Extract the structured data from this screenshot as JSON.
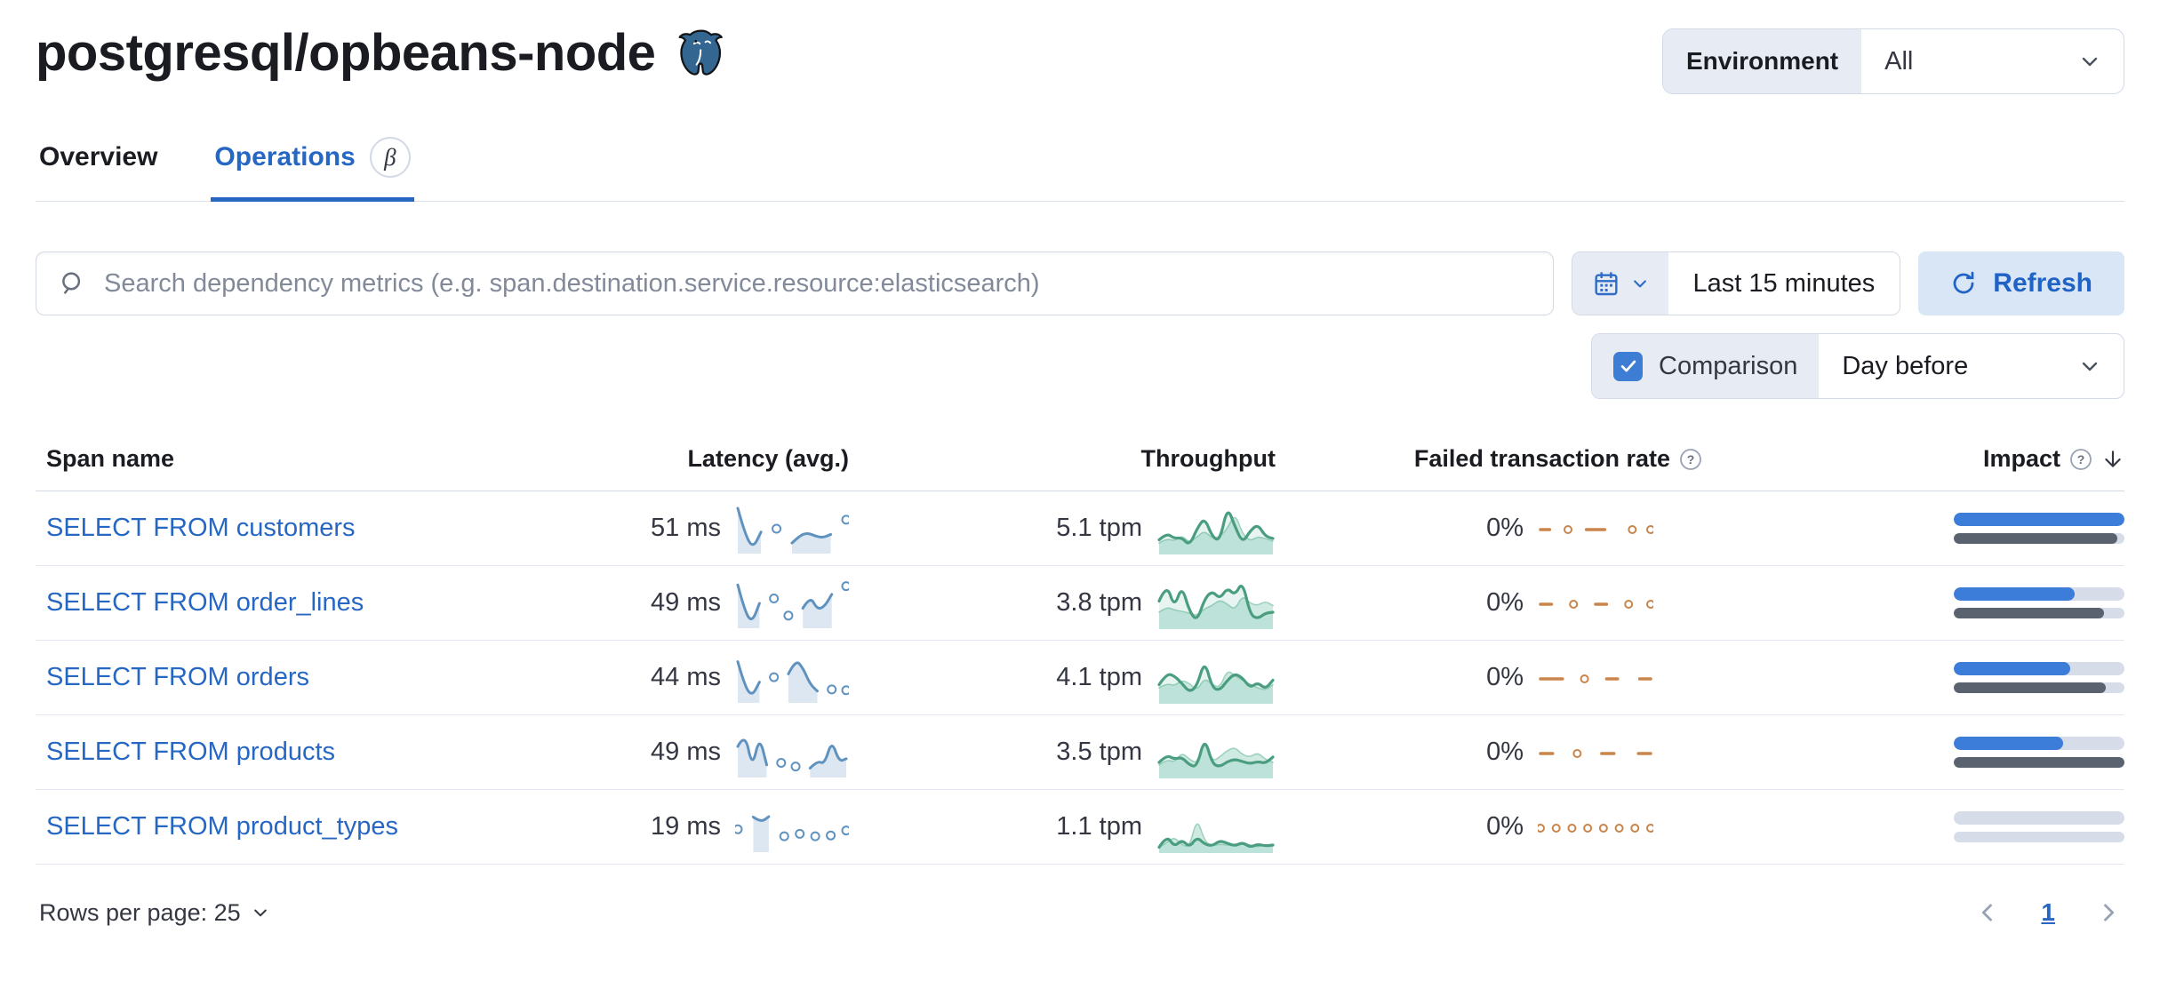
{
  "page": {
    "title": "postgresql/opbeans-node"
  },
  "environment": {
    "label": "Environment",
    "value": "All"
  },
  "tabs": [
    {
      "label": "Overview",
      "active": false
    },
    {
      "label": "Operations",
      "active": true,
      "badge": "β"
    }
  ],
  "search": {
    "placeholder": "Search dependency metrics (e.g. span.destination.service.resource:elasticsearch)"
  },
  "time_picker": {
    "value": "Last 15 minutes"
  },
  "refresh": {
    "label": "Refresh"
  },
  "comparison": {
    "label": "Comparison",
    "value": "Day before",
    "checked": true
  },
  "table": {
    "headers": {
      "span_name": "Span name",
      "latency": "Latency (avg.)",
      "throughput": "Throughput",
      "failed_rate": "Failed transaction rate",
      "impact": "Impact"
    },
    "sort": {
      "column": "impact",
      "direction": "desc"
    },
    "rows": [
      {
        "span_name": "SELECT FROM customers",
        "latency": "51 ms",
        "throughput": "5.1 tpm",
        "failed_rate": "0%",
        "impact": {
          "current": 100,
          "previous": 96
        },
        "sparks": {
          "latency": [
            1,
            0.32,
            0.03,
            0.42,
            null,
            0.5,
            null,
            0.15,
            0.33,
            0.4,
            0.32,
            0.28,
            0.36,
            null,
            0.72
          ],
          "throughput_current": [
            0.25,
            0.4,
            0.28,
            0.3,
            0.12,
            0.5,
            0.75,
            0.32,
            0.22,
            1.0,
            0.55,
            0.18,
            0.45,
            0.6,
            0.33,
            0.28
          ],
          "throughput_previous": [
            0.18,
            0.28,
            0.22,
            0.35,
            0.18,
            0.32,
            0.45,
            0.28,
            0.32,
            0.5,
            0.85,
            0.38,
            0.22,
            0.32,
            0.28,
            0.22
          ],
          "failed": [
            0,
            0,
            null,
            0,
            null,
            0,
            0,
            0,
            null,
            null,
            0,
            null,
            0
          ]
        }
      },
      {
        "span_name": "SELECT FROM order_lines",
        "latency": "49 ms",
        "throughput": "3.8 tpm",
        "failed_rate": "0%",
        "impact": {
          "current": 71,
          "previous": 88
        },
        "sparks": {
          "latency": [
            0.95,
            0.28,
            0.04,
            0.5,
            null,
            0.62,
            null,
            0.2,
            null,
            0.38,
            0.68,
            0.35,
            0.42,
            0.72,
            null,
            0.92
          ],
          "throughput_current": [
            0.55,
            0.95,
            0.4,
            0.9,
            0.32,
            0.1,
            0.6,
            0.78,
            0.6,
            0.85,
            0.68,
            1.0,
            0.25,
            0.15,
            0.28,
            0.3
          ],
          "throughput_previous": [
            0.3,
            0.42,
            0.35,
            0.32,
            0.28,
            0.22,
            0.38,
            0.45,
            0.58,
            0.48,
            0.35,
            0.68,
            0.5,
            0.45,
            0.55,
            0.45
          ],
          "failed": [
            0,
            0,
            null,
            0,
            null,
            0,
            0,
            null,
            0,
            null,
            0
          ]
        }
      },
      {
        "span_name": "SELECT FROM orders",
        "latency": "44 ms",
        "throughput": "4.1 tpm",
        "failed_rate": "0%",
        "impact": {
          "current": 68,
          "previous": 89
        },
        "sparks": {
          "latency": [
            0.9,
            0.28,
            0.06,
            0.4,
            null,
            0.52,
            null,
            0.6,
            0.95,
            0.75,
            0.35,
            0.18,
            null,
            0.22,
            null,
            0.2
          ],
          "throughput_current": [
            0.35,
            0.6,
            0.55,
            0.38,
            0.18,
            0.32,
            0.9,
            0.28,
            0.22,
            0.45,
            0.6,
            0.5,
            0.28,
            0.4,
            0.25,
            0.45
          ],
          "throughput_previous": [
            0.28,
            0.38,
            0.32,
            0.45,
            0.38,
            0.22,
            0.5,
            0.35,
            0.28,
            0.68,
            0.55,
            0.45,
            0.35,
            0.28,
            0.22,
            0.35
          ],
          "failed": [
            0,
            0,
            0,
            null,
            0,
            null,
            0,
            0,
            null,
            0,
            0
          ]
        }
      },
      {
        "span_name": "SELECT FROM products",
        "latency": "49 ms",
        "throughput": "3.5 tpm",
        "failed_rate": "0%",
        "impact": {
          "current": 64,
          "previous": 100
        },
        "sparks": {
          "latency": [
            0.65,
            1.0,
            0.12,
            0.9,
            0.2,
            null,
            0.25,
            null,
            0.16,
            null,
            0.12,
            0.3,
            0.22,
            0.8,
            0.28,
            0.35
          ],
          "throughput_current": [
            0.28,
            0.45,
            0.35,
            0.4,
            0.22,
            0.18,
            0.85,
            0.25,
            0.18,
            0.3,
            0.35,
            0.3,
            0.25,
            0.3,
            0.26,
            0.4
          ],
          "throughput_previous": [
            0.22,
            0.35,
            0.28,
            0.5,
            0.35,
            0.25,
            0.78,
            0.3,
            0.4,
            0.55,
            0.62,
            0.45,
            0.4,
            0.5,
            0.35,
            0.28
          ],
          "failed": [
            0,
            0,
            null,
            0,
            null,
            0,
            0,
            null,
            0,
            0
          ]
        }
      },
      {
        "span_name": "SELECT FROM product_types",
        "latency": "19 ms",
        "throughput": "1.1 tpm",
        "failed_rate": "0%",
        "impact": {
          "current": 0,
          "previous": 0
        },
        "sparks": {
          "latency": [
            0.45,
            null,
            0.75,
            0.62,
            0.76,
            null,
            0.28,
            null,
            0.34,
            null,
            0.28,
            null,
            0.3,
            null,
            0.42
          ],
          "throughput_current": [
            0.05,
            0.32,
            0.06,
            0.22,
            0.05,
            0.28,
            0.12,
            0.08,
            0.2,
            0.14,
            0.08,
            0.16,
            0.05,
            0.12,
            0.08,
            0.1
          ],
          "throughput_previous": [
            0.05,
            0.15,
            0.28,
            0.1,
            0.05,
            0.72,
            0.18,
            0.08,
            0.12,
            0.1,
            0.08,
            0.15,
            0.1,
            0.05,
            0.12,
            0.08
          ],
          "failed": [
            0,
            null,
            0,
            null,
            0,
            null,
            0,
            null,
            0,
            null,
            0,
            null,
            0,
            null,
            0
          ]
        }
      }
    ]
  },
  "pagination": {
    "rows_per_page": "Rows per page: 25",
    "current_page": "1"
  },
  "colors": {
    "primary": "#2767c4",
    "vis_latency_blue": "#6092c0",
    "vis_green": "#4a9e7f",
    "vis_green_prev": "#9ed2be",
    "vis_orange": "#c9854b",
    "impact_bar_blue": "#3c7dd9",
    "impact_bar_gray": "#5a6270"
  }
}
